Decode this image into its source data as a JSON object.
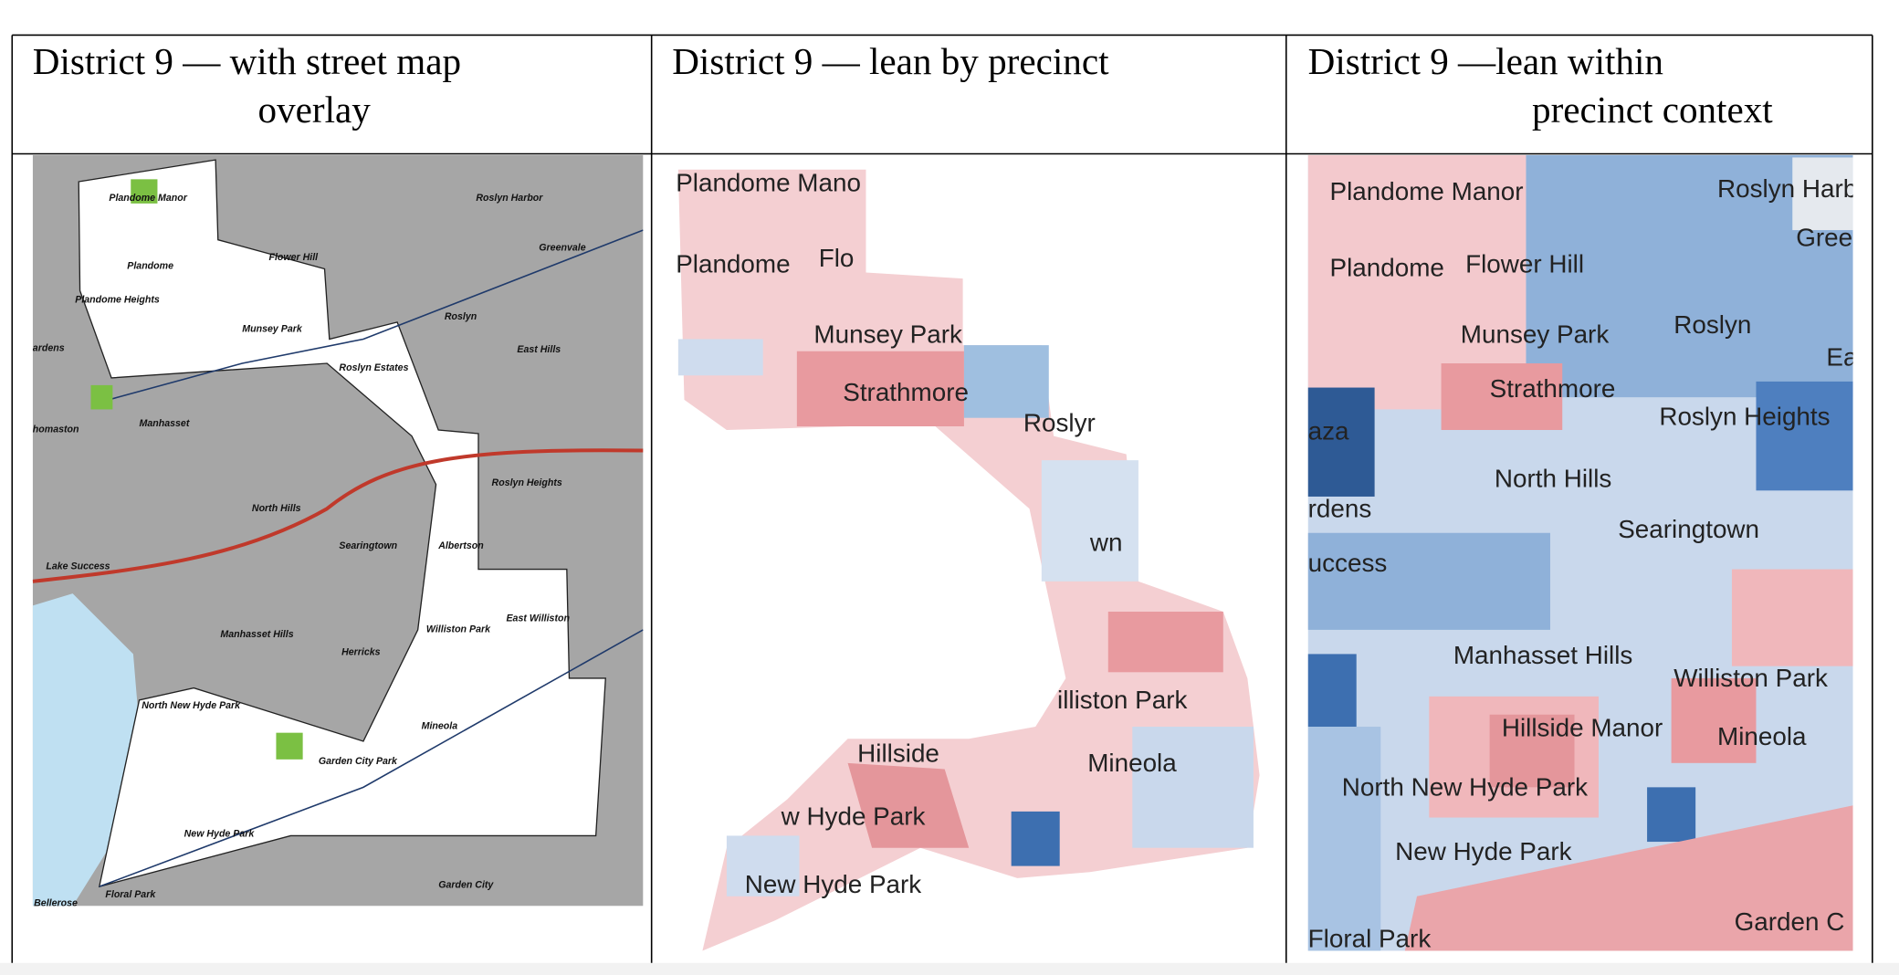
{
  "panels": [
    {
      "header_lines": [
        "District 9 — with street map",
        "overlay"
      ],
      "map_labels": [
        "Plandome Manor",
        "Roslyn Harbor",
        "Greenvale",
        "Flower Hill",
        "Plandome",
        "Plandome Heights",
        "Roslyn",
        "Munsey Park",
        "East Hills",
        "Roslyn Estates",
        "Manhasset",
        "Roslyn Heights",
        "North Hills",
        "Searingtown",
        "Albertson",
        "Lake Success",
        "East Williston",
        "Williston Park",
        "Manhasset Hills",
        "Herricks",
        "North New Hyde Park",
        "Mineola",
        "Garden City Park",
        "New Hyde Park",
        "Floral Park",
        "Garden City",
        "Bellerose",
        "ardens",
        "homaston"
      ]
    },
    {
      "header_lines": [
        "District 9 — lean by precinct"
      ],
      "map_labels": [
        "Plandome Mano",
        "Plandome",
        "Flo",
        "Munsey Park",
        "Strathmore",
        "Roslyr",
        "wn",
        "illiston Park",
        "Mineola",
        "Hillside",
        "w Hyde Park",
        "New Hyde Park"
      ]
    },
    {
      "header_lines": [
        "District 9 —lean within",
        "precinct context"
      ],
      "map_labels": [
        "Plandome Manor",
        "Roslyn Harbo",
        "Green",
        "Plandome",
        "Flower Hill",
        "Munsey Park",
        "Roslyn",
        "Ea",
        "Strathmore",
        "Roslyn Heights",
        "North Hills",
        "aza",
        "rdens",
        "Searingtown",
        "uccess",
        "Manhasset Hills",
        "Williston Park",
        "Hillside Manor",
        "Mineola",
        "North New Hyde Park",
        "New Hyde Park",
        "Floral Park",
        "Garden C"
      ]
    }
  ]
}
